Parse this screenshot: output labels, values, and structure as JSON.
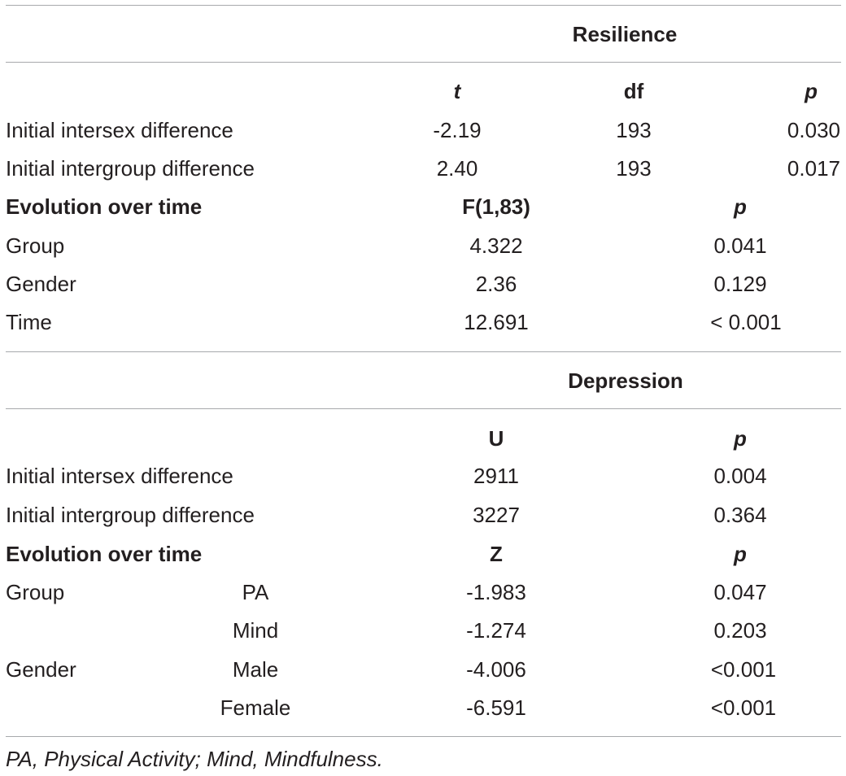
{
  "resilience": {
    "title": "Resilience",
    "headers": {
      "t": "t",
      "df": "df",
      "p": "p"
    },
    "rows": [
      {
        "label": "Initial intersex difference",
        "t": "-2.19",
        "df": "193",
        "p": "0.030"
      },
      {
        "label": "Initial intergroup difference",
        "t": "2.40",
        "df": "193",
        "p": "0.017"
      }
    ],
    "evolution": {
      "label": "Evolution over time",
      "stat_header": "F(1,83)",
      "p_header": "p",
      "rows": [
        {
          "label": "Group",
          "stat": "4.322",
          "p": "0.041"
        },
        {
          "label": "Gender",
          "stat": "2.36",
          "p": "0.129"
        },
        {
          "label": "Time",
          "stat": "12.691",
          "p": "< 0.001"
        }
      ]
    }
  },
  "depression": {
    "title": "Depression",
    "headers": {
      "stat": "U",
      "p": "p"
    },
    "rows": [
      {
        "label": "Initial intersex difference",
        "stat": "2911",
        "p": "0.004"
      },
      {
        "label": "Initial intergroup difference",
        "stat": "3227",
        "p": "0.364"
      }
    ],
    "evolution": {
      "label": "Evolution over time",
      "stat_header": "Z",
      "p_header": "p",
      "rows": [
        {
          "group": "Group",
          "sub": "PA",
          "stat": "-1.983",
          "p": "0.047"
        },
        {
          "group": "",
          "sub": "Mind",
          "stat": "-1.274",
          "p": "0.203"
        },
        {
          "group": "Gender",
          "sub": "Male",
          "stat": "-4.006",
          "p": "<0.001"
        },
        {
          "group": "",
          "sub": "Female",
          "stat": "-6.591",
          "p": "<0.001"
        }
      ]
    }
  },
  "footnote": "PA, Physical Activity; Mind, Mindfulness."
}
